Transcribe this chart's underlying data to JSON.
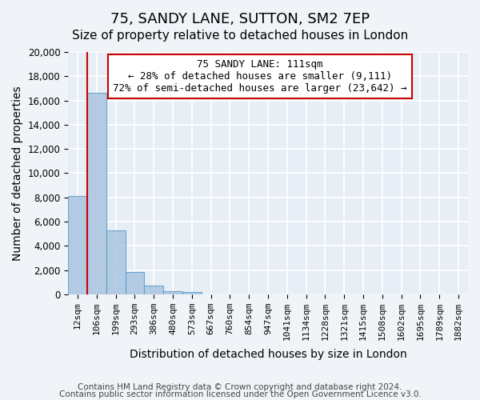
{
  "title": "75, SANDY LANE, SUTTON, SM2 7EP",
  "subtitle": "Size of property relative to detached houses in London",
  "xlabel": "Distribution of detached houses by size in London",
  "ylabel": "Number of detached properties",
  "bin_labels": [
    "12sqm",
    "106sqm",
    "199sqm",
    "293sqm",
    "386sqm",
    "480sqm",
    "573sqm",
    "667sqm",
    "760sqm",
    "854sqm",
    "947sqm",
    "1041sqm",
    "1134sqm",
    "1228sqm",
    "1321sqm",
    "1415sqm",
    "1508sqm",
    "1602sqm",
    "1695sqm",
    "1789sqm",
    "1882sqm"
  ],
  "bar_heights": [
    8100,
    16600,
    5300,
    1850,
    700,
    250,
    200,
    0,
    0,
    0,
    0,
    0,
    0,
    0,
    0,
    0,
    0,
    0,
    0,
    0,
    0
  ],
  "bar_color": "#aac4e0",
  "bar_edge_color": "#5a9ec9",
  "property_line_color": "#cc0000",
  "ylim": [
    0,
    20000
  ],
  "yticks": [
    0,
    2000,
    4000,
    6000,
    8000,
    10000,
    12000,
    14000,
    16000,
    18000,
    20000
  ],
  "annotation_line1": "75 SANDY LANE: 111sqm",
  "annotation_line2": "← 28% of detached houses are smaller (9,111)",
  "annotation_line3": "72% of semi-detached houses are larger (23,642) →",
  "annotation_box_color": "#ffffff",
  "annotation_box_edge_color": "#cc0000",
  "footer_line1": "Contains HM Land Registry data © Crown copyright and database right 2024.",
  "footer_line2": "Contains public sector information licensed under the Open Government Licence v3.0.",
  "background_color": "#e8eef5",
  "fig_background_color": "#f0f4f8",
  "grid_color": "#ffffff",
  "title_fontsize": 13,
  "subtitle_fontsize": 11,
  "axis_label_fontsize": 10,
  "tick_label_fontsize": 8,
  "annotation_fontsize": 9,
  "footer_fontsize": 7.5
}
